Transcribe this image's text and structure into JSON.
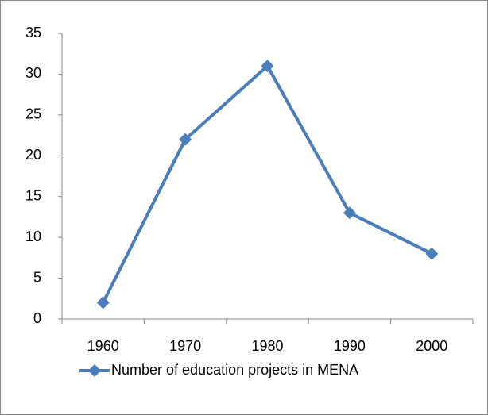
{
  "chart_data": {
    "type": "line",
    "categories": [
      "1960",
      "1970",
      "1980",
      "1990",
      "2000"
    ],
    "series": [
      {
        "name": "Number of education projects in MENA",
        "color": "#4a7ebb",
        "values": [
          2,
          22,
          31,
          13,
          8
        ]
      }
    ],
    "ylim": [
      0,
      35
    ],
    "yticks": [
      0,
      5,
      10,
      15,
      20,
      25,
      30,
      35
    ],
    "grid": false,
    "legend": "bottom"
  }
}
